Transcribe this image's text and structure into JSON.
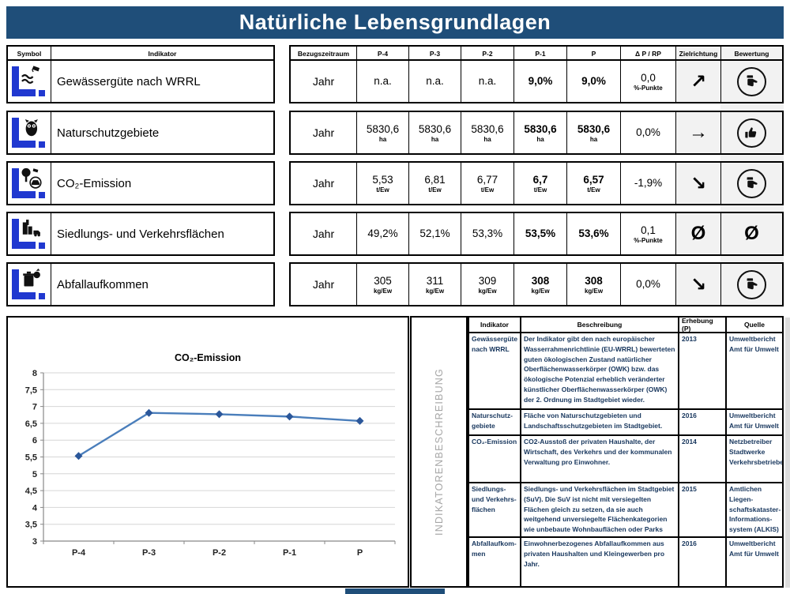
{
  "title": "Natürliche Lebensgrundlagen",
  "colors": {
    "header_bg": "#1F4E79",
    "icon_blue": "#2038D0",
    "cell_gray": "#F2F2F2",
    "line_color": "#4A7EBB",
    "marker_color": "#2B579A",
    "vertical_label_gray": "#A6A6A6"
  },
  "indicator_table": {
    "headers": {
      "symbol": "Symbol",
      "indikator": "Indikator",
      "bezugszeitraum": "Bezugszeitraum",
      "p4": "P-4",
      "p3": "P-3",
      "p2": "P-2",
      "p1": "P-1",
      "p": "P",
      "delta": "Δ P / RP",
      "zielrichtung": "Zielrichtung",
      "bewertung": "Bewertung"
    },
    "rows": [
      {
        "icon": "water-quality",
        "name": "Gewässergüte nach WRRL",
        "bezugszeitraum": "Jahr",
        "values": [
          "n.a.",
          "n.a.",
          "n.a.",
          "9,0%",
          "9,0%"
        ],
        "units": [
          "",
          "",
          "",
          "",
          ""
        ],
        "delta": "0,0",
        "delta_unit": "%-Punkte",
        "zielrichtung": "↗",
        "bewertung": "thumb-side"
      },
      {
        "icon": "owl",
        "name": "Naturschutzgebiete",
        "bezugszeitraum": "Jahr",
        "values": [
          "5830,6",
          "5830,6",
          "5830,6",
          "5830,6",
          "5830,6"
        ],
        "units": [
          "ha",
          "ha",
          "ha",
          "ha",
          "ha"
        ],
        "delta": "0,0%",
        "delta_unit": "",
        "zielrichtung": "→",
        "bewertung": "thumb-up"
      },
      {
        "icon": "tree-car",
        "name": "CO₂-Emission",
        "bezugszeitraum": "Jahr",
        "values": [
          "5,53",
          "6,81",
          "6,77",
          "6,7",
          "6,57"
        ],
        "units": [
          "t/Ew",
          "t/Ew",
          "t/Ew",
          "t/Ew",
          "t/Ew"
        ],
        "delta": "-1,9%",
        "delta_unit": "",
        "zielrichtung": "↘",
        "bewertung": "thumb-side"
      },
      {
        "icon": "city",
        "name": "Siedlungs- und Verkehrsflächen",
        "bezugszeitraum": "Jahr",
        "values": [
          "49,2%",
          "52,1%",
          "53,3%",
          "53,5%",
          "53,6%"
        ],
        "units": [
          "",
          "",
          "",
          "",
          ""
        ],
        "delta": "0,1",
        "delta_unit": "%-Punkte",
        "zielrichtung": "Ø",
        "bewertung": "Ø"
      },
      {
        "icon": "waste",
        "name": "Abfallaufkommen",
        "bezugszeitraum": "Jahr",
        "values": [
          "305",
          "311",
          "309",
          "308",
          "308"
        ],
        "units": [
          "kg/Ew",
          "kg/Ew",
          "kg/Ew",
          "kg/Ew",
          "kg/Ew"
        ],
        "delta": "0,0%",
        "delta_unit": "",
        "zielrichtung": "↘",
        "bewertung": "thumb-side"
      }
    ]
  },
  "chart_data": {
    "type": "line",
    "title": "CO₂-Emission",
    "categories": [
      "P-4",
      "P-3",
      "P-2",
      "P-1",
      "P"
    ],
    "values": [
      5.53,
      6.81,
      6.77,
      6.7,
      6.57
    ],
    "ylim": [
      3,
      8
    ],
    "ytick_step": 0.5,
    "grid": true,
    "legend": "none",
    "line_color": "#4A7EBB",
    "marker_color": "#2B579A",
    "marker": "diamond"
  },
  "description_panel": {
    "vertical_label": "INDIKATORENBESCHREIBUNG",
    "headers": [
      "Indikator",
      "Beschreibung",
      "Erhebung (P)",
      "Quelle"
    ],
    "rows": [
      {
        "indikator": "Gewässergüte nach WRRL",
        "beschreibung": "Der Indikator gibt den nach europäischer Wasserrahmenrichtlinie (EU-WRRL) bewerteten guten ökologischen Zustand natürlicher Oberflächenwasserkörper (OWK) bzw. das ökologische Potenzial erheblich veränderter künstlicher Oberflächenwasserkörper (OWK) der 2. Ordnung im Stadtgebiet wieder.",
        "erhebung": "2013",
        "quelle": "Umweltbericht Amt für Umwelt"
      },
      {
        "indikator": "Naturschutz-gebiete",
        "beschreibung": "Fläche von Naturschutzgebieten und Landschaftsschutzgebieten im Stadtgebiet.",
        "erhebung": "2016",
        "quelle": "Umweltbericht Amt für Umwelt"
      },
      {
        "indikator": "CO₂-Emission",
        "beschreibung": "CO2-Ausstoß der privaten Haushalte, der Wirtschaft, des Verkehrs und der kommunalen Verwaltung pro Einwohner.",
        "erhebung": "2014",
        "quelle": "Netzbetreiber Stadtwerke Verkehrsbetriebe"
      },
      {
        "indikator": "Siedlungs- und Verkehrs-flächen",
        "beschreibung": "Siedlungs- und Verkehrsflächen im Stadtgebiet (SuV). Die SuV ist nicht mit versiegelten Flächen gleich zu setzen, da sie auch weitgehend unversiegelte Flächenkategorien wie unbebaute Wohnbauflächen oder Parks beinhaltet.",
        "erhebung": "2015",
        "quelle": "Amtlichen Liegen-schaftskataster-Informations-system (ALKIS)"
      },
      {
        "indikator": "Abfallaufkom-men",
        "beschreibung": "Einwohnerbezogenes Abfallaufkommen aus privaten Haushalten und Kleingewerben pro Jahr.",
        "erhebung": "2016",
        "quelle": "Umweltbericht Amt für Umwelt"
      }
    ]
  }
}
